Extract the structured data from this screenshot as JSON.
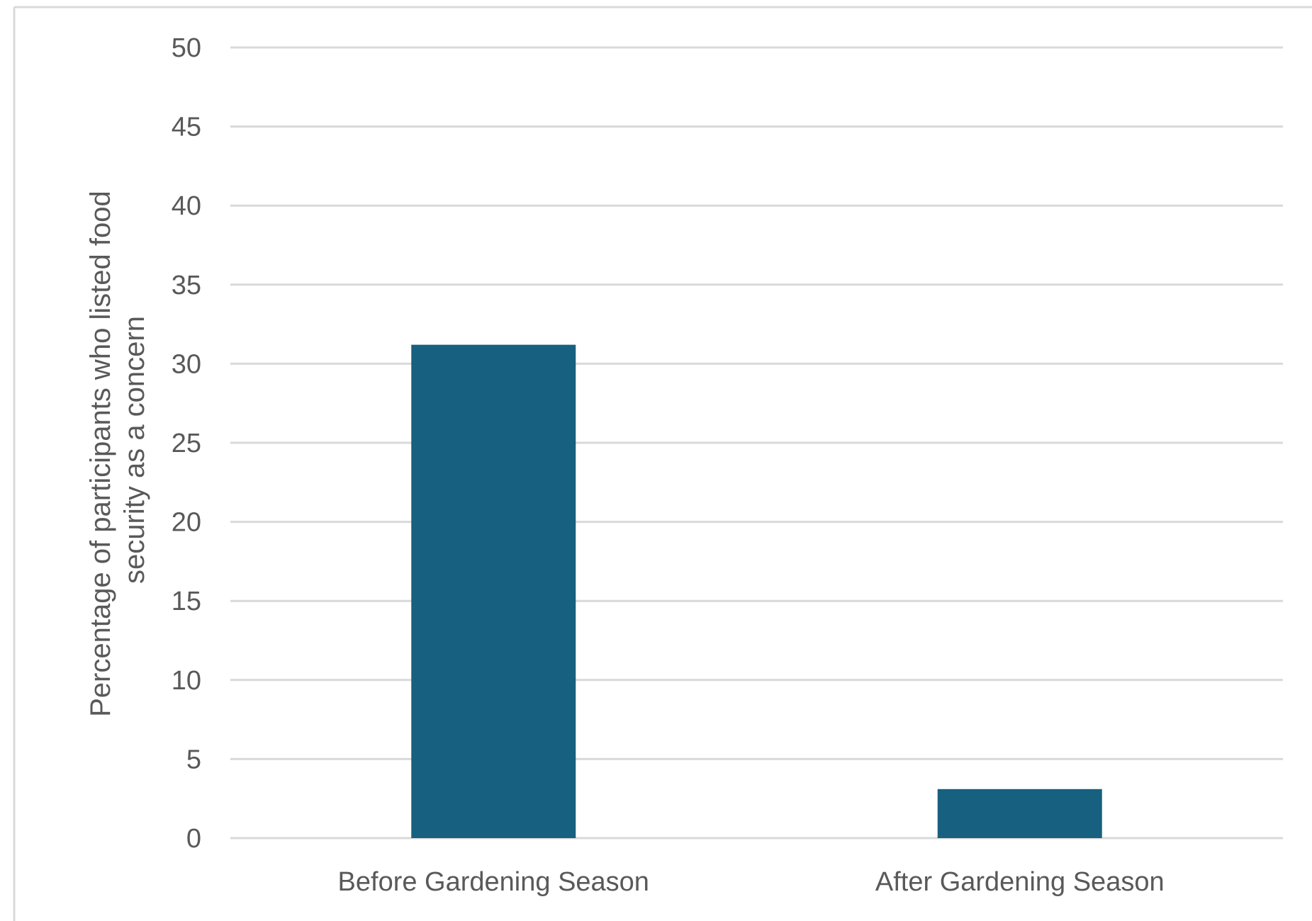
{
  "chart_data": {
    "type": "bar",
    "title": "",
    "xlabel": "",
    "ylabel": "Percentage of participants who listed food security as a concern",
    "ylabel_lines": [
      "Percentage of participants who listed food",
      "security as a concern"
    ],
    "categories": [
      "Before Gardening Season",
      "After Gardening Season"
    ],
    "values": [
      31.2,
      3.1
    ],
    "ylim": [
      0,
      50
    ],
    "yticks": [
      0,
      5,
      10,
      15,
      20,
      25,
      30,
      35,
      40,
      45,
      50
    ],
    "grid": true,
    "legend": "none",
    "bar_color": "#17607f",
    "grid_color": "#d9d9d9",
    "text_color": "#595959"
  }
}
